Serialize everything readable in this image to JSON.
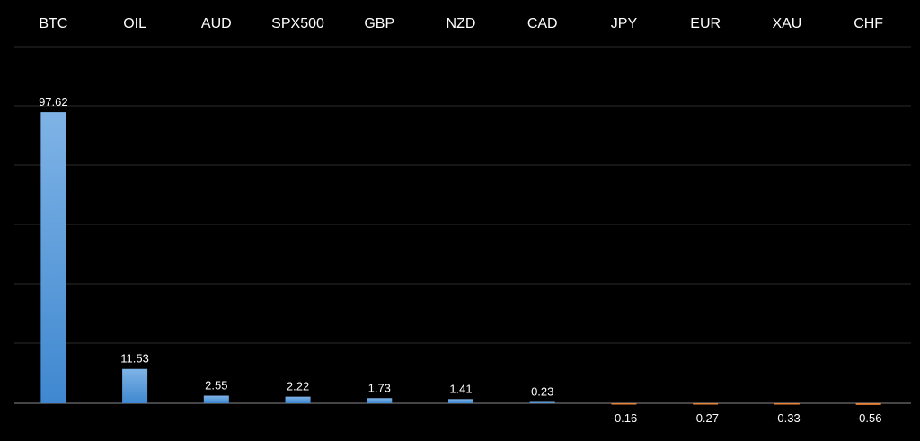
{
  "chart_data": {
    "type": "bar",
    "categories": [
      "BTC",
      "OIL",
      "AUD",
      "SPX500",
      "GBP",
      "NZD",
      "CAD",
      "JPY",
      "EUR",
      "XAU",
      "CHF"
    ],
    "values": [
      97.62,
      11.53,
      2.55,
      2.22,
      1.73,
      1.41,
      0.23,
      -0.16,
      -0.27,
      -0.33,
      -0.56
    ],
    "value_labels": [
      "97.62",
      "11.53",
      "2.55",
      "2.22",
      "1.73",
      "1.41",
      "0.23",
      "-0.16",
      "-0.27",
      "-0.33",
      "-0.56"
    ],
    "title": "",
    "xlabel": "",
    "ylabel": "",
    "ylim": [
      -10,
      120
    ],
    "category_axis": "top",
    "grid": true,
    "legend": "none",
    "colors": {
      "background": "#000000",
      "positive_top": "#7fb3e6",
      "positive_bottom": "#3f88d0",
      "negative": "#e8833a",
      "text": "#ffffff",
      "grid": "#2b2b2b",
      "zero_line": "#8a8a8a"
    }
  }
}
